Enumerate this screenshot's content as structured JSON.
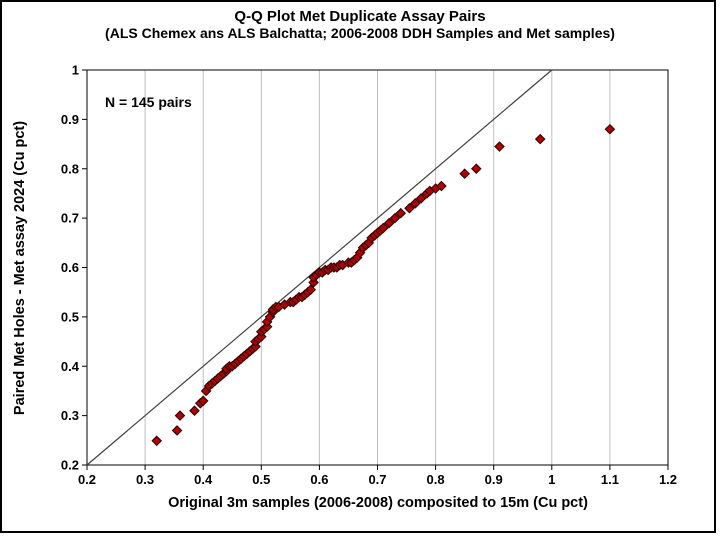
{
  "chart_data": {
    "type": "scatter",
    "title": "Q-Q Plot Met Duplicate Assay Pairs",
    "subtitle": "(ALS Chemex ans ALS Balchatta; 2006-2008 DDH Samples and Met samples)",
    "annotation": "N = 145 pairs",
    "xlabel": "Original 3m samples (2006-2008) composited to 15m (Cu pct)",
    "ylabel": "Paired Met Holes - Met assay 2024 (Cu pct)",
    "xlim": [
      0.2,
      1.2
    ],
    "ylim": [
      0.2,
      1.0
    ],
    "x_ticks": [
      0.2,
      0.3,
      0.4,
      0.5,
      0.6,
      0.7,
      0.8,
      0.9,
      1.0,
      1.1,
      1.2
    ],
    "x_tick_labels": [
      "0.2",
      "0.3",
      "0.4",
      "0.5",
      "0.6",
      "0.7",
      "0.8",
      "0.9",
      "1",
      "1.1",
      "1.2"
    ],
    "y_ticks": [
      0.2,
      0.3,
      0.4,
      0.5,
      0.6,
      0.7,
      0.8,
      0.9,
      1.0
    ],
    "y_tick_labels": [
      "0.2",
      "0.3",
      "0.4",
      "0.5",
      "0.6",
      "0.7",
      "0.8",
      "0.9",
      "1"
    ],
    "grid": "vertical-only",
    "grid_color": "#bfbfbf",
    "legend": "none",
    "reference_line": {
      "type": "y=x",
      "from": [
        0.2,
        0.2
      ],
      "to": [
        1.0,
        1.0
      ],
      "color": "#404040"
    },
    "marker": {
      "shape": "diamond",
      "color": "#B00000",
      "edge": "#2a0000"
    },
    "series": [
      {
        "name": "Met duplicate assay pairs",
        "points": [
          [
            0.32,
            0.249
          ],
          [
            0.355,
            0.27
          ],
          [
            0.36,
            0.3
          ],
          [
            0.385,
            0.31
          ],
          [
            0.395,
            0.325
          ],
          [
            0.4,
            0.33
          ],
          [
            0.405,
            0.35
          ],
          [
            0.41,
            0.36
          ],
          [
            0.415,
            0.365
          ],
          [
            0.42,
            0.37
          ],
          [
            0.425,
            0.375
          ],
          [
            0.43,
            0.38
          ],
          [
            0.435,
            0.385
          ],
          [
            0.44,
            0.39
          ],
          [
            0.44,
            0.395
          ],
          [
            0.445,
            0.4
          ],
          [
            0.45,
            0.4
          ],
          [
            0.455,
            0.405
          ],
          [
            0.46,
            0.41
          ],
          [
            0.465,
            0.415
          ],
          [
            0.47,
            0.42
          ],
          [
            0.475,
            0.425
          ],
          [
            0.48,
            0.43
          ],
          [
            0.485,
            0.435
          ],
          [
            0.49,
            0.44
          ],
          [
            0.49,
            0.45
          ],
          [
            0.495,
            0.455
          ],
          [
            0.5,
            0.46
          ],
          [
            0.5,
            0.47
          ],
          [
            0.505,
            0.475
          ],
          [
            0.51,
            0.48
          ],
          [
            0.51,
            0.49
          ],
          [
            0.515,
            0.5
          ],
          [
            0.52,
            0.51
          ],
          [
            0.52,
            0.515
          ],
          [
            0.525,
            0.52
          ],
          [
            0.53,
            0.52
          ],
          [
            0.54,
            0.525
          ],
          [
            0.55,
            0.53
          ],
          [
            0.555,
            0.53
          ],
          [
            0.56,
            0.535
          ],
          [
            0.565,
            0.54
          ],
          [
            0.57,
            0.54
          ],
          [
            0.575,
            0.545
          ],
          [
            0.58,
            0.55
          ],
          [
            0.585,
            0.555
          ],
          [
            0.59,
            0.57
          ],
          [
            0.59,
            0.58
          ],
          [
            0.595,
            0.585
          ],
          [
            0.6,
            0.59
          ],
          [
            0.605,
            0.59
          ],
          [
            0.61,
            0.595
          ],
          [
            0.615,
            0.595
          ],
          [
            0.62,
            0.6
          ],
          [
            0.625,
            0.6
          ],
          [
            0.63,
            0.6
          ],
          [
            0.635,
            0.605
          ],
          [
            0.64,
            0.605
          ],
          [
            0.65,
            0.61
          ],
          [
            0.655,
            0.61
          ],
          [
            0.66,
            0.615
          ],
          [
            0.665,
            0.62
          ],
          [
            0.67,
            0.63
          ],
          [
            0.675,
            0.64
          ],
          [
            0.68,
            0.645
          ],
          [
            0.685,
            0.65
          ],
          [
            0.69,
            0.66
          ],
          [
            0.695,
            0.665
          ],
          [
            0.7,
            0.67
          ],
          [
            0.705,
            0.675
          ],
          [
            0.71,
            0.68
          ],
          [
            0.72,
            0.69
          ],
          [
            0.73,
            0.7
          ],
          [
            0.74,
            0.71
          ],
          [
            0.755,
            0.72
          ],
          [
            0.765,
            0.73
          ],
          [
            0.775,
            0.74
          ],
          [
            0.785,
            0.75
          ],
          [
            0.79,
            0.755
          ],
          [
            0.8,
            0.76
          ],
          [
            0.81,
            0.765
          ],
          [
            0.85,
            0.79
          ],
          [
            0.87,
            0.8
          ],
          [
            0.91,
            0.845
          ],
          [
            0.98,
            0.86
          ],
          [
            1.1,
            0.88
          ]
        ]
      }
    ]
  }
}
